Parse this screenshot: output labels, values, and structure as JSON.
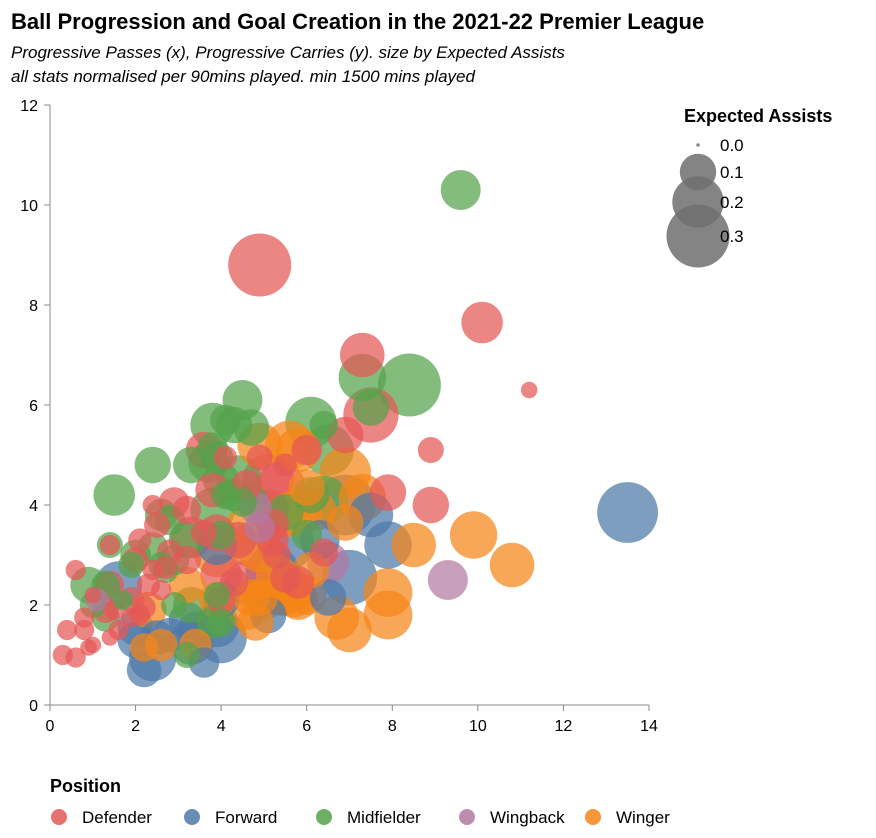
{
  "chart_data": {
    "type": "scatter",
    "title": "Ball Progression and Goal Creation in the 2021-22 Premier League",
    "subtitle": [
      "Progressive Passes (x), Progressive Carries (y). size by Expected Assists",
      "all stats normalised per 90mins played. min 1500 mins played"
    ],
    "xlabel": "",
    "ylabel": "",
    "xlim": [
      0,
      14
    ],
    "ylim": [
      0,
      12
    ],
    "x_ticks": [
      "0",
      "2",
      "4",
      "6",
      "8",
      "10",
      "12",
      "14"
    ],
    "y_ticks": [
      "0",
      "2",
      "4",
      "6",
      "8",
      "10",
      "12"
    ],
    "grid": false,
    "size_legend": {
      "title": "Expected Assists",
      "entries": [
        {
          "label": "0.0",
          "value": 0.0
        },
        {
          "label": "0.1",
          "value": 0.1
        },
        {
          "label": "0.2",
          "value": 0.2
        },
        {
          "label": "0.3",
          "value": 0.3
        }
      ]
    },
    "color_legend": {
      "title": "Position",
      "placement": "bottom"
    },
    "series": [
      {
        "name": "Defender",
        "color": "#e45756",
        "points": [
          [
            4.9,
            8.8,
            0.3
          ],
          [
            10.1,
            7.65,
            0.13
          ],
          [
            7.3,
            7.0,
            0.15
          ],
          [
            7.5,
            5.8,
            0.23
          ],
          [
            11.2,
            6.3,
            0.02
          ],
          [
            6.9,
            5.4,
            0.1
          ],
          [
            3.6,
            5.1,
            0.1
          ],
          [
            6.0,
            5.1,
            0.07
          ],
          [
            8.9,
            5.1,
            0.05
          ],
          [
            4.9,
            4.95,
            0.05
          ],
          [
            5.5,
            4.8,
            0.04
          ],
          [
            4.1,
            4.95,
            0.04
          ],
          [
            5.1,
            4.5,
            0.2
          ],
          [
            5.4,
            4.4,
            0.17
          ],
          [
            4.6,
            4.4,
            0.07
          ],
          [
            3.8,
            4.3,
            0.09
          ],
          [
            7.9,
            4.25,
            0.1
          ],
          [
            8.9,
            4.0,
            0.1
          ],
          [
            2.9,
            4.05,
            0.07
          ],
          [
            5.1,
            3.9,
            0.13
          ],
          [
            3.2,
            3.9,
            0.06
          ],
          [
            2.4,
            4.0,
            0.03
          ],
          [
            5.2,
            3.6,
            0.08
          ],
          [
            2.5,
            3.6,
            0.05
          ],
          [
            3.6,
            3.45,
            0.05
          ],
          [
            3.9,
            3.45,
            0.1
          ],
          [
            3.3,
            3.35,
            0.13
          ],
          [
            2.1,
            3.3,
            0.04
          ],
          [
            4.4,
            3.3,
            0.1
          ],
          [
            5.2,
            3.3,
            0.08
          ],
          [
            4.7,
            3.2,
            0.15
          ],
          [
            6.4,
            3.05,
            0.06
          ],
          [
            2.8,
            3.05,
            0.05
          ],
          [
            1.4,
            3.2,
            0.03
          ],
          [
            5.3,
            3.0,
            0.06
          ],
          [
            3.2,
            2.9,
            0.06
          ],
          [
            2.0,
            2.9,
            0.05
          ],
          [
            2.7,
            2.75,
            0.04
          ],
          [
            0.6,
            2.7,
            0.03
          ],
          [
            2.4,
            2.7,
            0.03
          ],
          [
            4.0,
            2.6,
            0.13
          ],
          [
            5.5,
            2.55,
            0.07
          ],
          [
            4.6,
            2.45,
            0.15
          ],
          [
            4.3,
            2.45,
            0.06
          ],
          [
            5.8,
            2.45,
            0.08
          ],
          [
            2.3,
            2.4,
            0.04
          ],
          [
            1.4,
            2.4,
            0.06
          ],
          [
            2.6,
            2.3,
            0.03
          ],
          [
            1.9,
            2.1,
            0.05
          ],
          [
            1.0,
            2.2,
            0.02
          ],
          [
            4.0,
            2.1,
            0.06
          ],
          [
            2.2,
            1.95,
            0.04
          ],
          [
            1.3,
            1.9,
            0.05
          ],
          [
            1.5,
            1.9,
            0.03
          ],
          [
            0.8,
            1.75,
            0.03
          ],
          [
            2.1,
            1.8,
            0.03
          ],
          [
            1.9,
            1.75,
            0.03
          ],
          [
            0.4,
            1.5,
            0.03
          ],
          [
            0.8,
            1.5,
            0.03
          ],
          [
            1.6,
            1.5,
            0.03
          ],
          [
            1.0,
            1.2,
            0.02
          ],
          [
            0.9,
            1.15,
            0.02
          ],
          [
            1.4,
            1.35,
            0.02
          ],
          [
            0.3,
            1.0,
            0.03
          ],
          [
            0.6,
            0.95,
            0.03
          ]
        ]
      },
      {
        "name": "Forward",
        "color": "#4c78a8",
        "points": [
          [
            13.5,
            3.85,
            0.28
          ],
          [
            6.9,
            4.0,
            0.28
          ],
          [
            7.5,
            3.8,
            0.15
          ],
          [
            5.5,
            3.25,
            0.25
          ],
          [
            6.3,
            3.3,
            0.12
          ],
          [
            7.9,
            3.2,
            0.17
          ],
          [
            3.9,
            3.2,
            0.12
          ],
          [
            7.0,
            2.55,
            0.23
          ],
          [
            5.2,
            2.65,
            0.22
          ],
          [
            1.6,
            2.4,
            0.17
          ],
          [
            6.5,
            2.15,
            0.1
          ],
          [
            4.0,
            2.1,
            0.1
          ],
          [
            5.1,
            1.8,
            0.1
          ],
          [
            3.9,
            1.6,
            0.15
          ],
          [
            3.2,
            1.7,
            0.1
          ],
          [
            2.0,
            1.55,
            0.1
          ],
          [
            3.4,
            1.5,
            0.1
          ],
          [
            4.0,
            1.35,
            0.2
          ],
          [
            2.0,
            1.3,
            0.1
          ],
          [
            2.5,
            1.35,
            0.09
          ],
          [
            2.8,
            1.4,
            0.09
          ],
          [
            3.3,
            1.25,
            0.15
          ],
          [
            2.4,
            0.95,
            0.17
          ],
          [
            3.6,
            0.85,
            0.07
          ],
          [
            2.2,
            0.7,
            0.09
          ]
        ]
      },
      {
        "name": "Midfielder",
        "color": "#54a24b",
        "points": [
          [
            9.6,
            10.3,
            0.12
          ],
          [
            8.4,
            6.4,
            0.3
          ],
          [
            7.3,
            6.55,
            0.17
          ],
          [
            7.5,
            5.95,
            0.1
          ],
          [
            4.5,
            6.1,
            0.12
          ],
          [
            6.1,
            5.65,
            0.2
          ],
          [
            3.8,
            5.6,
            0.15
          ],
          [
            4.1,
            5.7,
            0.07
          ],
          [
            4.3,
            5.6,
            0.1
          ],
          [
            4.7,
            5.55,
            0.1
          ],
          [
            6.4,
            5.6,
            0.06
          ],
          [
            6.5,
            5.1,
            0.2
          ],
          [
            3.8,
            5.15,
            0.07
          ],
          [
            3.7,
            4.85,
            0.12
          ],
          [
            3.3,
            4.8,
            0.1
          ],
          [
            3.9,
            4.95,
            0.08
          ],
          [
            2.4,
            4.8,
            0.1
          ],
          [
            4.4,
            4.55,
            0.15
          ],
          [
            4.0,
            4.5,
            0.1
          ],
          [
            6.4,
            4.1,
            0.18
          ],
          [
            6.1,
            4.2,
            0.1
          ],
          [
            4.3,
            4.2,
            0.08
          ],
          [
            4.1,
            4.2,
            0.06
          ],
          [
            1.5,
            4.2,
            0.13
          ],
          [
            4.7,
            4.1,
            0.08
          ],
          [
            4.5,
            4.05,
            0.06
          ],
          [
            3.8,
            3.9,
            0.15
          ],
          [
            5.5,
            3.85,
            0.1
          ],
          [
            2.6,
            3.8,
            0.08
          ],
          [
            2.8,
            3.7,
            0.07
          ],
          [
            4.0,
            3.4,
            0.06
          ],
          [
            6.0,
            3.4,
            0.07
          ],
          [
            3.2,
            3.3,
            0.1
          ],
          [
            2.4,
            3.15,
            0.07
          ],
          [
            1.4,
            3.2,
            0.05
          ],
          [
            2.0,
            3.0,
            0.07
          ],
          [
            2.9,
            2.9,
            0.07
          ],
          [
            2.6,
            2.8,
            0.05
          ],
          [
            2.7,
            2.7,
            0.05
          ],
          [
            1.9,
            2.8,
            0.05
          ],
          [
            0.9,
            2.4,
            0.1
          ],
          [
            1.3,
            2.4,
            0.06
          ],
          [
            3.3,
            2.0,
            0.1
          ],
          [
            2.9,
            2.0,
            0.05
          ],
          [
            3.9,
            2.2,
            0.05
          ],
          [
            1.0,
            2.0,
            0.05
          ],
          [
            1.3,
            1.75,
            0.06
          ],
          [
            3.8,
            1.65,
            0.08
          ],
          [
            4.0,
            1.65,
            0.06
          ],
          [
            3.2,
            1.0,
            0.05
          ],
          [
            1.7,
            2.1,
            0.03
          ]
        ]
      },
      {
        "name": "Wingback",
        "color": "#b279a2",
        "points": [
          [
            9.3,
            2.5,
            0.12
          ],
          [
            6.5,
            2.85,
            0.13
          ],
          [
            4.8,
            3.95,
            0.08
          ],
          [
            4.9,
            3.55,
            0.07
          ],
          [
            1.1,
            2.1,
            0.04
          ]
        ]
      },
      {
        "name": "Winger",
        "color": "#f58518",
        "points": [
          [
            5.6,
            5.2,
            0.18
          ],
          [
            4.9,
            5.2,
            0.15
          ],
          [
            5.8,
            5.1,
            0.15
          ],
          [
            6.9,
            4.65,
            0.2
          ],
          [
            7.3,
            4.15,
            0.17
          ],
          [
            6.0,
            4.35,
            0.1
          ],
          [
            6.2,
            3.9,
            0.13
          ],
          [
            5.5,
            3.8,
            0.15
          ],
          [
            5.8,
            3.85,
            0.17
          ],
          [
            6.9,
            3.65,
            0.1
          ],
          [
            4.6,
            3.6,
            0.12
          ],
          [
            4.9,
            3.1,
            0.15
          ],
          [
            8.5,
            3.2,
            0.15
          ],
          [
            9.9,
            3.4,
            0.17
          ],
          [
            3.9,
            3.0,
            0.15
          ],
          [
            5.3,
            2.6,
            0.13
          ],
          [
            6.1,
            2.7,
            0.1
          ],
          [
            10.8,
            2.8,
            0.15
          ],
          [
            3.2,
            2.4,
            0.1
          ],
          [
            5.5,
            2.3,
            0.2
          ],
          [
            5.7,
            2.2,
            0.15
          ],
          [
            5.4,
            2.2,
            0.13
          ],
          [
            7.9,
            2.25,
            0.18
          ],
          [
            4.7,
            2.15,
            0.1
          ],
          [
            4.9,
            2.15,
            0.1
          ],
          [
            5.0,
            2.1,
            0.12
          ],
          [
            5.8,
            2.1,
            0.12
          ],
          [
            3.9,
            2.1,
            0.1
          ],
          [
            6.0,
            2.2,
            0.12
          ],
          [
            4.6,
            1.9,
            0.12
          ],
          [
            2.3,
            1.9,
            0.1
          ],
          [
            7.9,
            1.8,
            0.18
          ],
          [
            6.7,
            1.75,
            0.15
          ],
          [
            4.8,
            1.65,
            0.1
          ],
          [
            7.0,
            1.5,
            0.15
          ],
          [
            3.4,
            1.2,
            0.08
          ],
          [
            2.6,
            1.2,
            0.08
          ],
          [
            2.2,
            1.15,
            0.06
          ]
        ]
      }
    ]
  }
}
